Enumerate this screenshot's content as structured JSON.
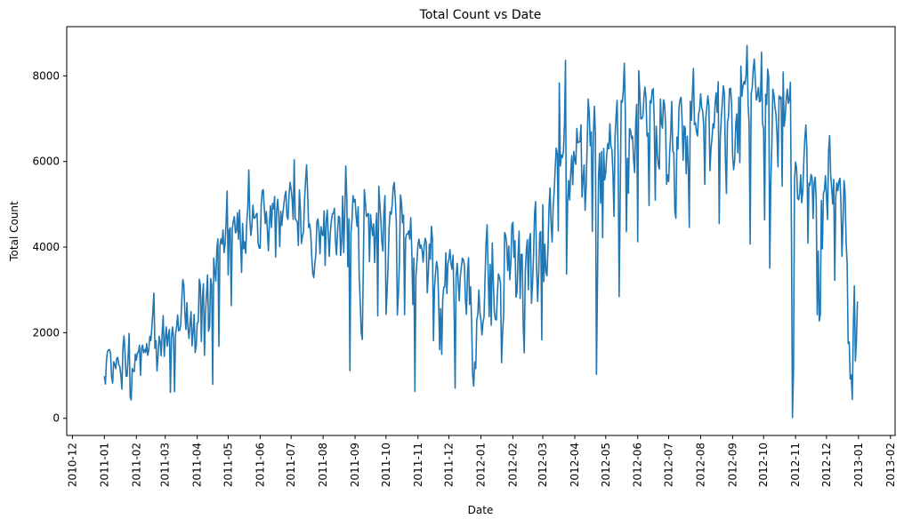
{
  "chart_data": {
    "type": "line",
    "title": "Total Count vs Date",
    "x_label": "Date",
    "y_label": "Total Count",
    "xticks": [
      "2010-12",
      "2011-01",
      "2011-02",
      "2011-03",
      "2011-04",
      "2011-05",
      "2011-06",
      "2011-07",
      "2011-08",
      "2011-09",
      "2011-10",
      "2011-11",
      "2011-12",
      "2012-01",
      "2012-02",
      "2012-03",
      "2012-04",
      "2012-05",
      "2012-06",
      "2012-07",
      "2012-08",
      "2012-09",
      "2012-10",
      "2012-11",
      "2012-12",
      "2013-01",
      "2013-02"
    ],
    "yticks": [
      0,
      2000,
      4000,
      6000,
      8000
    ],
    "ylim": [
      -400,
      9150
    ],
    "series": [
      {
        "color": "#1f77b4",
        "values": [
          985,
          801,
          1349,
          1562,
          1600,
          1606,
          1510,
          959,
          822,
          1321,
          1263,
          1162,
          1406,
          1421,
          1248,
          1204,
          1000,
          683,
          1650,
          1927,
          1543,
          981,
          986,
          1416,
          1985,
          506,
          431,
          1167,
          1098,
          1096,
          1501,
          1360,
          1526,
          1550,
          1708,
          1005,
          1623,
          1712,
          1530,
          1605,
          1538,
          1746,
          1472,
          1589,
          1913,
          1815,
          2115,
          2475,
          2927,
          1635,
          1812,
          1107,
          1450,
          1917,
          1807,
          1461,
          1969,
          2402,
          1446,
          1851,
          2134,
          1685,
          1944,
          2077,
          605,
          1872,
          2133,
          1891,
          623,
          1977,
          2132,
          2417,
          2046,
          2056,
          2192,
          2744,
          3239,
          3117,
          2471,
          2077,
          2703,
          2121,
          1865,
          2210,
          2496,
          1693,
          2028,
          2425,
          1536,
          1685,
          2227,
          2252,
          3249,
          3115,
          1795,
          2808,
          3141,
          1471,
          2455,
          2895,
          3348,
          2034,
          2162,
          3267,
          3126,
          795,
          3744,
          3429,
          3204,
          3944,
          4189,
          1683,
          4036,
          4191,
          4073,
          4400,
          3872,
          4058,
          4595,
          5312,
          3351,
          4401,
          4451,
          2633,
          4433,
          4608,
          4714,
          4333,
          4362,
          4803,
          4182,
          4864,
          4105,
          3409,
          4553,
          3958,
          4123,
          3855,
          4575,
          4917,
          5805,
          4660,
          4274,
          4492,
          4978,
          4677,
          4679,
          4758,
          4788,
          4098,
          3982,
          3974,
          4968,
          5312,
          5342,
          4906,
          4548,
          4833,
          4401,
          3915,
          4586,
          4966,
          4460,
          5020,
          4891,
          5180,
          3767,
          4844,
          5119,
          4744,
          4010,
          4835,
          4507,
          4790,
          4991,
          5202,
          5305,
          4708,
          4648,
          5225,
          5515,
          5362,
          5119,
          4649,
          6043,
          4665,
          4629,
          4592,
          4040,
          5336,
          4881,
          4086,
          4258,
          4342,
          5084,
          5538,
          5923,
          5302,
          4458,
          4541,
          4332,
          3784,
          3387,
          3285,
          3606,
          3840,
          4590,
          4656,
          4390,
          3846,
          4475,
          4302,
          4266,
          4845,
          3574,
          4576,
          4866,
          4294,
          3785,
          4326,
          4602,
          4780,
          4792,
          4905,
          4150,
          3820,
          4338,
          4725,
          4694,
          3805,
          4153,
          5191,
          3873,
          4758,
          5895,
          5130,
          3542,
          4661,
          1115,
          4334,
          4634,
          5204,
          5058,
          5115,
          4727,
          4484,
          4940,
          3351,
          2710,
          1996,
          1842,
          3544,
          5345,
          5046,
          4713,
          4763,
          4785,
          3659,
          4760,
          4511,
          4274,
          4539,
          3641,
          4352,
          4795,
          2395,
          5423,
          5010,
          4630,
          4120,
          3907,
          4839,
          5202,
          2429,
          2918,
          3570,
          4456,
          4826,
          4765,
          4985,
          5409,
          5511,
          5117,
          4563,
          2416,
          2913,
          3644,
          5217,
          5041,
          4570,
          4748,
          2424,
          4195,
          4304,
          4308,
          4381,
          4187,
          4687,
          3894,
          2659,
          3747,
          627,
          3331,
          3669,
          4068,
          4186,
          3974,
          4046,
          3926,
          3649,
          4035,
          4205,
          4109,
          2933,
          3368,
          4067,
          3717,
          4486,
          4195,
          1817,
          3053,
          3392,
          3663,
          3520,
          2765,
          1607,
          2566,
          1495,
          2792,
          3068,
          3071,
          3867,
          2914,
          3613,
          3727,
          3940,
          3614,
          3485,
          3811,
          2594,
          705,
          3322,
          3620,
          3190,
          2743,
          3310,
          3523,
          3740,
          3709,
          3577,
          2739,
          2431,
          3403,
          3750,
          2660,
          3068,
          2209,
          1011,
          754,
          1317,
          1162,
          2302,
          2423,
          2999,
          2485,
          2294,
          1951,
          2236,
          2368,
          3272,
          4098,
          4521,
          3425,
          2376,
          3598,
          2177,
          4097,
          3214,
          2493,
          2311,
          2298,
          2935,
          3376,
          3292,
          3163,
          1301,
          1977,
          2432,
          4339,
          4270,
          4075,
          3456,
          4023,
          3243,
          3624,
          4509,
          4579,
          3761,
          4151,
          2832,
          2947,
          3784,
          4375,
          2802,
          3830,
          3831,
          2169,
          1529,
          3422,
          3922,
          4169,
          3005,
          4154,
          4318,
          2689,
          3129,
          3777,
          4773,
          5062,
          3487,
          2732,
          3389,
          4322,
          4363,
          1834,
          4990,
          3194,
          4066,
          3423,
          3333,
          3956,
          4916,
          5382,
          4569,
          4118,
          4911,
          5298,
          5847,
          6312,
          6192,
          4378,
          7836,
          5892,
          6153,
          6093,
          6230,
          6871,
          8362,
          3372,
          4996,
          5558,
          5102,
          5698,
          6133,
          5459,
          6235,
          6041,
          5936,
          6772,
          6436,
          6457,
          6460,
          6857,
          5169,
          5585,
          5918,
          4862,
          5409,
          6398,
          7460,
          7132,
          6370,
          6691,
          4367,
          6565,
          7290,
          6624,
          1027,
          3214,
          5633,
          6196,
          5026,
          6233,
          4220,
          6304,
          5572,
          5740,
          6169,
          6421,
          6296,
          6883,
          6359,
          6273,
          5728,
          4717,
          6572,
          7030,
          7429,
          6118,
          2843,
          5115,
          7424,
          7384,
          7639,
          8294,
          7129,
          4359,
          6073,
          5260,
          6770,
          6734,
          6536,
          6591,
          6043,
          5743,
          6855,
          7338,
          4127,
          8120,
          7641,
          6998,
          7001,
          7055,
          7494,
          7736,
          7498,
          6598,
          6664,
          4972,
          7421,
          7363,
          7665,
          7702,
          6978,
          5099,
          6825,
          6211,
          5905,
          5823,
          7458,
          6891,
          6779,
          7442,
          7335,
          6879,
          5463,
          5687,
          5531,
          6227,
          6660,
          7403,
          6241,
          6207,
          4840,
          4672,
          6569,
          6290,
          7264,
          7446,
          7499,
          6969,
          6031,
          6830,
          6786,
          5713,
          6591,
          5870,
          4459,
          7410,
          6966,
          7592,
          8173,
          6861,
          6904,
          6685,
          6597,
          7105,
          7216,
          7580,
          7261,
          7175,
          6824,
          5464,
          7013,
          7273,
          7534,
          7286,
          5786,
          6299,
          6544,
          6883,
          6784,
          7347,
          7605,
          7148,
          7865,
          4549,
          6530,
          7006,
          7375,
          7765,
          7582,
          6053,
          5255,
          6917,
          7040,
          7697,
          7713,
          7350,
          6140,
          5810,
          6034,
          6864,
          7112,
          6203,
          7504,
          5976,
          8227,
          7525,
          7767,
          7870,
          7804,
          8009,
          8714,
          7333,
          6869,
          4073,
          7591,
          7720,
          8167,
          8395,
          7907,
          7436,
          7538,
          7733,
          7393,
          7415,
          8555,
          6889,
          6778,
          4639,
          7572,
          7328,
          8156,
          7965,
          3510,
          5478,
          6392,
          7691,
          7570,
          7282,
          7109,
          6639,
          5875,
          7534,
          7461,
          7509,
          5424,
          8090,
          6824,
          7058,
          7466,
          7693,
          7359,
          7444,
          7852,
          4459,
          22,
          1096,
          5566,
          5986,
          5847,
          5138,
          5107,
          5259,
          5686,
          5035,
          5315,
          5992,
          6536,
          6852,
          6269,
          4094,
          5495,
          5445,
          5698,
          5629,
          4669,
          5499,
          5634,
          5146,
          2425,
          3910,
          2277,
          2424,
          5087,
          3959,
          5260,
          5323,
          5668,
          5191,
          4649,
          6234,
          6606,
          5729,
          5375,
          5008,
          5582,
          3228,
          5170,
          5501,
          5319,
          5532,
          5611,
          5047,
          3786,
          4585,
          5557,
          5267,
          4128,
          3623,
          1749,
          1787,
          920,
          1013,
          441,
          2114,
          3095,
          1341,
          1796,
          2729
        ]
      }
    ]
  }
}
